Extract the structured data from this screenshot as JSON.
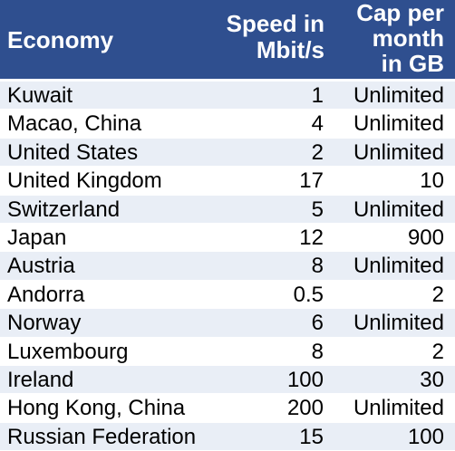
{
  "header": {
    "economy": "Economy",
    "speed_line1": "Speed in",
    "speed_line2": "Mbit/s",
    "cap_line1": "Cap per",
    "cap_line2": "month",
    "cap_line3": "in GB"
  },
  "rows": [
    {
      "economy": "Kuwait",
      "speed": "1",
      "cap": "Unlimited"
    },
    {
      "economy": "Macao, China",
      "speed": "4",
      "cap": "Unlimited"
    },
    {
      "economy": "United States",
      "speed": "2",
      "cap": "Unlimited"
    },
    {
      "economy": "United Kingdom",
      "speed": "17",
      "cap": "10"
    },
    {
      "economy": "Switzerland",
      "speed": "5",
      "cap": "Unlimited"
    },
    {
      "economy": "Japan",
      "speed": "12",
      "cap": "900"
    },
    {
      "economy": "Austria",
      "speed": "8",
      "cap": "Unlimited"
    },
    {
      "economy": "Andorra",
      "speed": "0.5",
      "cap": "2"
    },
    {
      "economy": "Norway",
      "speed": "6",
      "cap": "Unlimited"
    },
    {
      "economy": "Luxembourg",
      "speed": "8",
      "cap": "2"
    },
    {
      "economy": "Ireland",
      "speed": "100",
      "cap": "30"
    },
    {
      "economy": "Hong Kong, China",
      "speed": "200",
      "cap": "Unlimited"
    },
    {
      "economy": "Russian Federation",
      "speed": "15",
      "cap": "100"
    }
  ],
  "colors": {
    "header_bg": "#2f4f8f",
    "header_text": "#ffffff",
    "row_alt_bg": "#e9eef6",
    "row_bg": "#ffffff",
    "text": "#000000"
  }
}
